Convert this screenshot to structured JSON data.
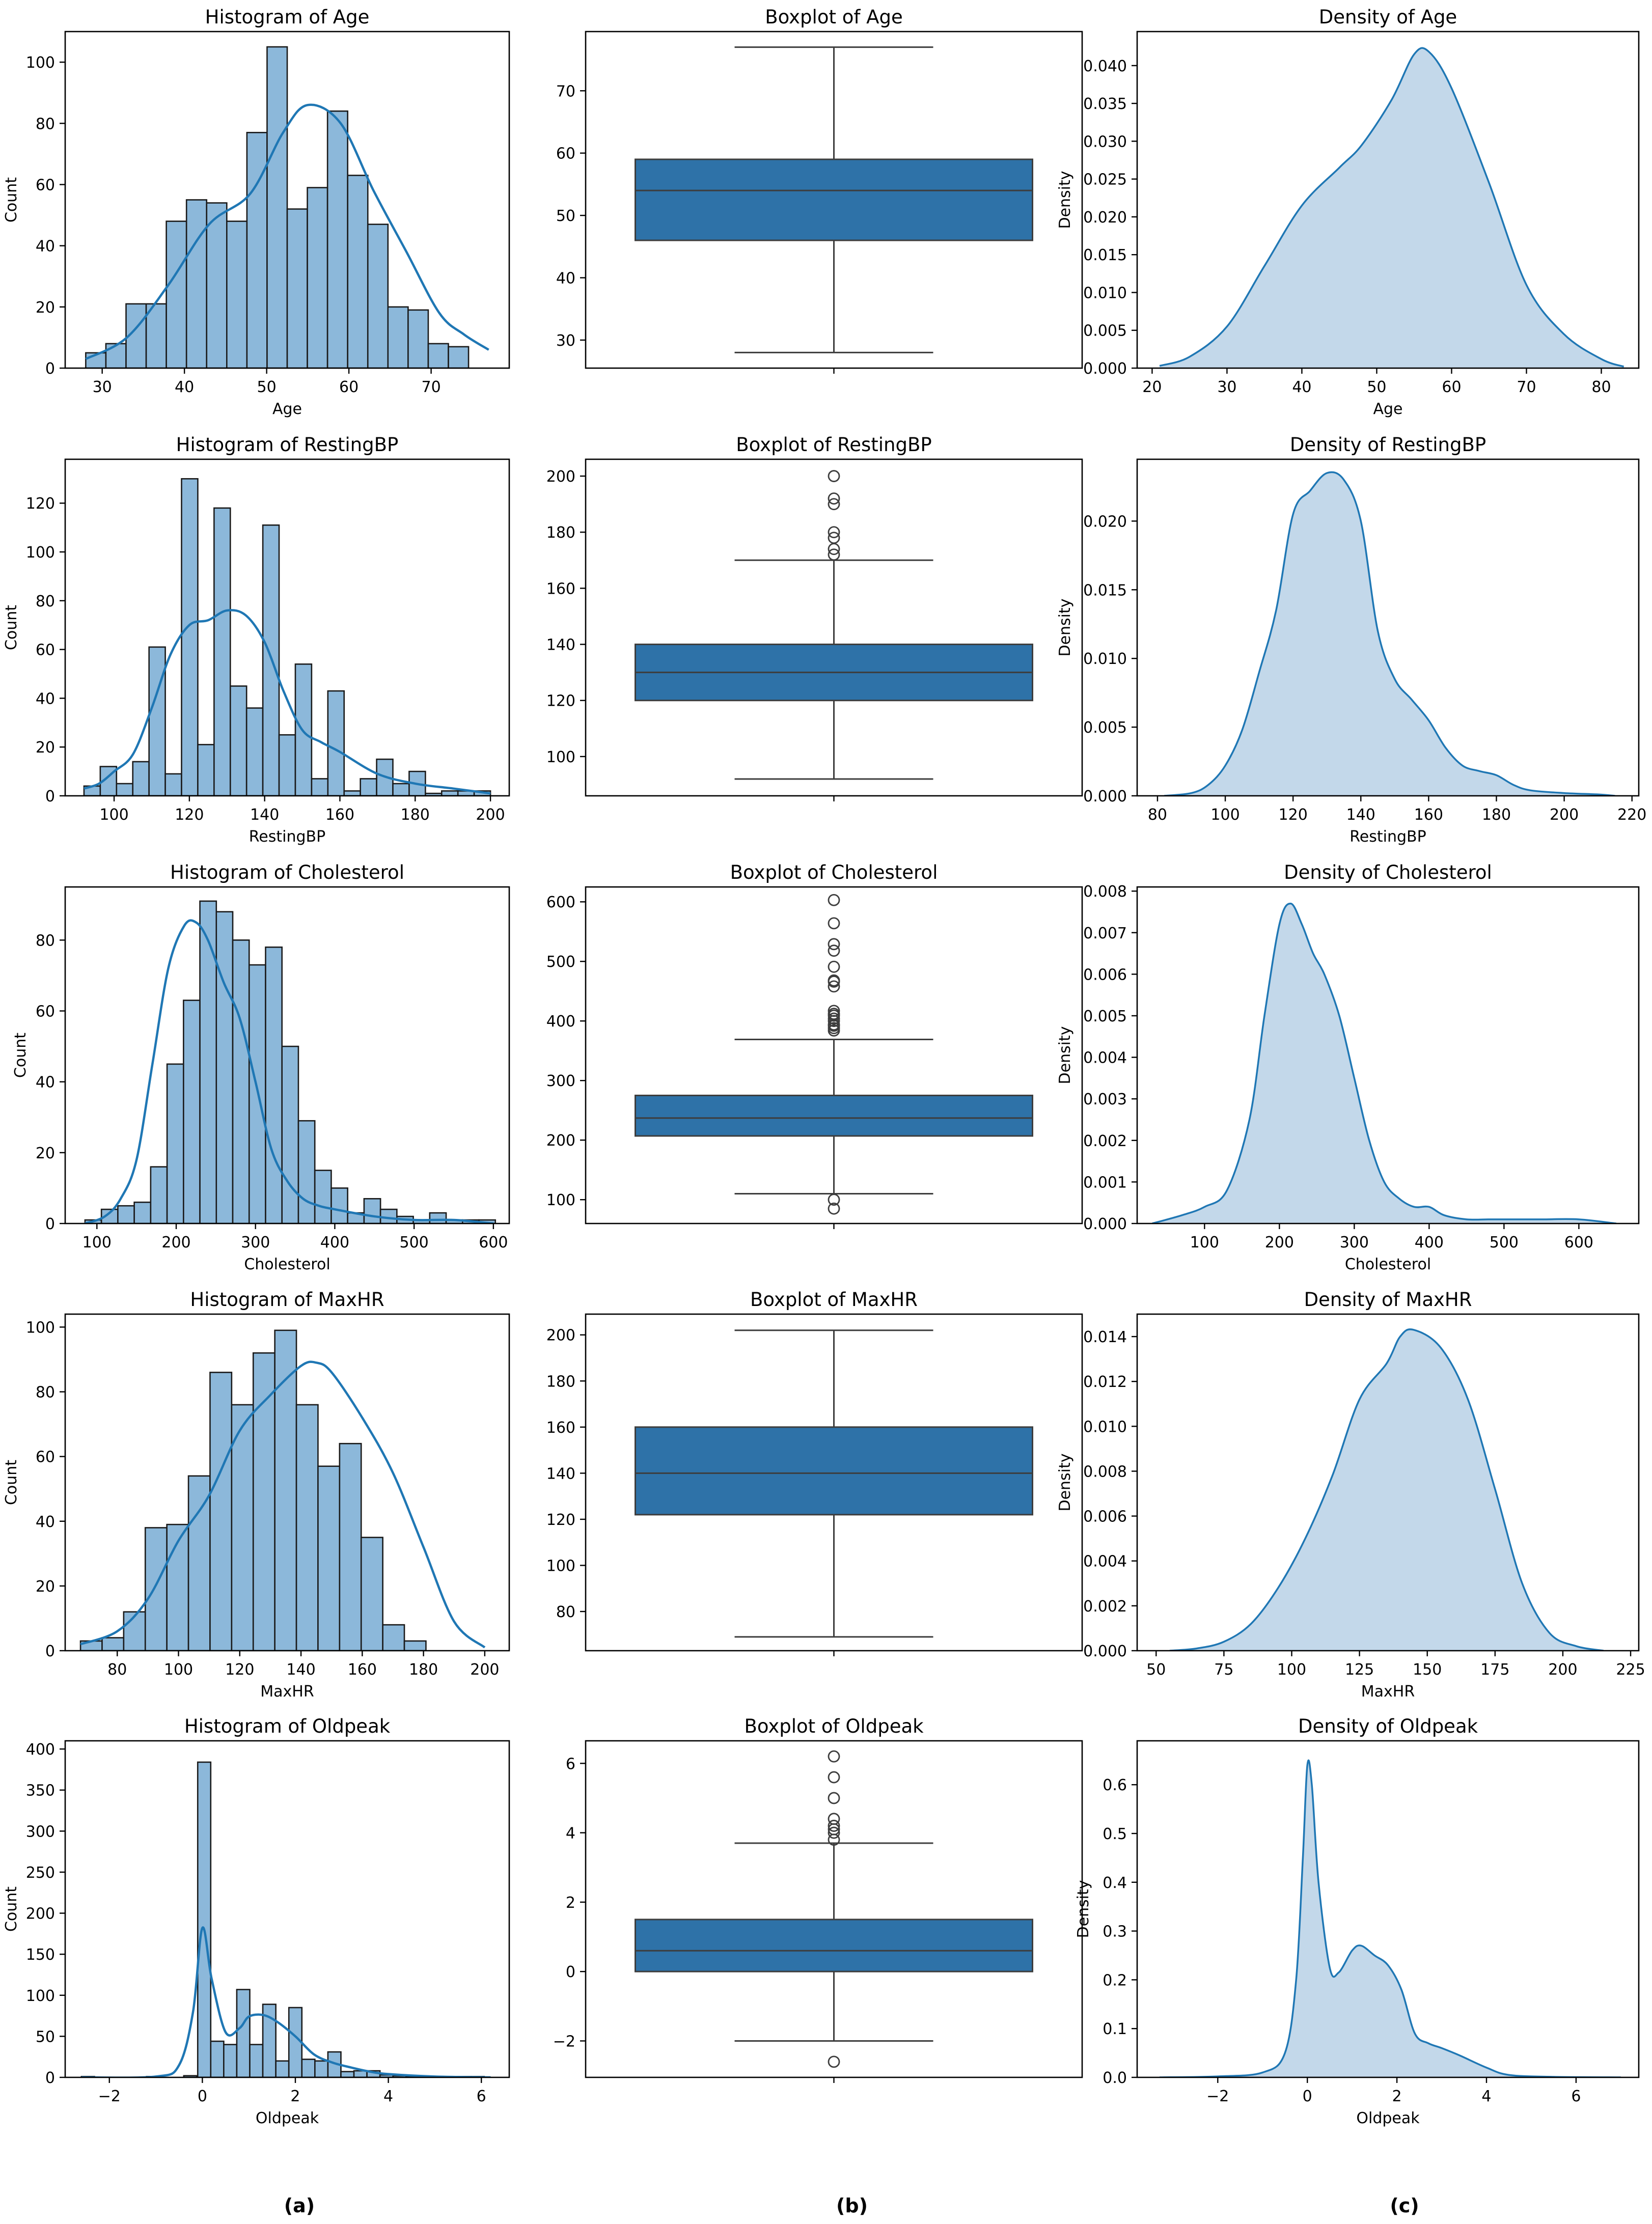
{
  "figure": {
    "panel_labels": [
      "(a)",
      "(b)",
      "(c)"
    ],
    "colors": {
      "main": "#1f77b4",
      "box": "#2e72a8",
      "hist_fill": "#8cb8da",
      "kde_fill": "#c3d8ea",
      "edge": "#1a1a1a"
    }
  },
  "chart_data": [
    {
      "type": "bar",
      "subtype": "histogram",
      "row": 0,
      "col": 0,
      "title": "Histogram of Age",
      "xlabel": "Age",
      "ylabel": "Count",
      "xlim": [
        25.5,
        79.5
      ],
      "ylim": [
        0,
        110
      ],
      "xticks": [
        30,
        40,
        50,
        60,
        70
      ],
      "yticks": [
        0,
        20,
        40,
        60,
        80,
        100
      ],
      "bin_start": 28,
      "bin_width": 2.45,
      "values": [
        5,
        8,
        21,
        21,
        48,
        55,
        54,
        48,
        77,
        105,
        52,
        59,
        84,
        63,
        47,
        20,
        19,
        8,
        7
      ],
      "kde": {
        "x": [
          28,
          33,
          38,
          43,
          48,
          52,
          55,
          59,
          63,
          67,
          71,
          74,
          77
        ],
        "y": [
          3,
          10,
          27,
          47,
          57,
          77,
          86,
          80,
          58,
          38,
          18,
          11,
          6
        ]
      }
    },
    {
      "type": "box",
      "row": 0,
      "col": 1,
      "title": "Boxplot of Age",
      "xlabel": "",
      "ylabel": "",
      "ylim": [
        25.5,
        79.5
      ],
      "yticks": [
        30,
        40,
        50,
        60,
        70
      ],
      "whisker_low": 28,
      "q1": 46,
      "median": 54,
      "q3": 59,
      "whisker_high": 77,
      "outliers": []
    },
    {
      "type": "area",
      "subtype": "density",
      "row": 0,
      "col": 2,
      "title": "Density of Age",
      "xlabel": "Age",
      "ylabel": "Density",
      "xlim": [
        18,
        85
      ],
      "ylim": [
        0,
        0.0445
      ],
      "xticks": [
        20,
        30,
        40,
        50,
        60,
        70,
        80
      ],
      "yticks": [
        0.0,
        0.005,
        0.01,
        0.015,
        0.02,
        0.025,
        0.03,
        0.035,
        0.04
      ],
      "ytick_labels": [
        "0.000",
        "0.005",
        "0.010",
        "0.015",
        "0.020",
        "0.025",
        "0.030",
        "0.035",
        "0.040"
      ],
      "x": [
        21,
        25,
        30,
        35,
        40,
        45,
        48,
        52,
        55,
        57,
        60,
        65,
        70,
        75,
        80,
        83
      ],
      "y": [
        0.0003,
        0.0015,
        0.0055,
        0.0135,
        0.0215,
        0.0265,
        0.0295,
        0.0355,
        0.0415,
        0.0418,
        0.037,
        0.0245,
        0.011,
        0.0045,
        0.0012,
        0.0002
      ]
    },
    {
      "type": "bar",
      "subtype": "histogram",
      "row": 1,
      "col": 0,
      "title": "Histogram of RestingBP",
      "xlabel": "RestingBP",
      "ylabel": "Count",
      "xlim": [
        87,
        205
      ],
      "ylim": [
        0,
        138
      ],
      "xticks": [
        100,
        120,
        140,
        160,
        180,
        200
      ],
      "yticks": [
        0,
        20,
        40,
        60,
        80,
        100,
        120
      ],
      "bin_start": 92,
      "bin_width": 4.32,
      "values": [
        4,
        12,
        5,
        14,
        61,
        9,
        130,
        21,
        118,
        45,
        36,
        111,
        25,
        54,
        7,
        43,
        2,
        7,
        15,
        5,
        10,
        1,
        2,
        2,
        2
      ],
      "kde": {
        "x": [
          92,
          96,
          100,
          105,
          110,
          115,
          120,
          125,
          130,
          135,
          140,
          145,
          150,
          155,
          160,
          170,
          180,
          190,
          200
        ],
        "y": [
          3,
          5,
          10,
          17,
          36,
          58,
          70,
          72,
          76,
          74,
          63,
          43,
          27,
          22,
          18,
          9,
          5,
          3,
          1
        ]
      }
    },
    {
      "type": "box",
      "row": 1,
      "col": 1,
      "title": "Boxplot of RestingBP",
      "xlabel": "",
      "ylabel": "",
      "ylim": [
        86,
        206
      ],
      "yticks": [
        100,
        120,
        140,
        160,
        180,
        200
      ],
      "whisker_low": 92,
      "q1": 120,
      "median": 130,
      "q3": 140,
      "whisker_high": 170,
      "outliers": [
        172,
        174,
        178,
        180,
        190,
        192,
        200
      ]
    },
    {
      "type": "area",
      "subtype": "density",
      "row": 1,
      "col": 2,
      "title": "Density of RestingBP",
      "xlabel": "RestingBP",
      "ylabel": "Density",
      "xlim": [
        74,
        222
      ],
      "ylim": [
        0,
        0.0245
      ],
      "xticks": [
        80,
        100,
        120,
        140,
        160,
        180,
        200,
        220
      ],
      "yticks": [
        0.0,
        0.005,
        0.01,
        0.015,
        0.02
      ],
      "ytick_labels": [
        "0.000",
        "0.005",
        "0.010",
        "0.015",
        "0.020"
      ],
      "x": [
        82,
        90,
        95,
        100,
        105,
        110,
        115,
        120,
        125,
        130,
        135,
        140,
        145,
        150,
        155,
        160,
        165,
        170,
        175,
        180,
        185,
        190,
        200,
        210,
        215
      ],
      "y": [
        0.0,
        0.0002,
        0.0008,
        0.0022,
        0.0048,
        0.009,
        0.0135,
        0.0205,
        0.0222,
        0.0235,
        0.023,
        0.02,
        0.012,
        0.0085,
        0.007,
        0.0055,
        0.0035,
        0.0022,
        0.0018,
        0.0015,
        0.0008,
        0.0004,
        0.0002,
        0.0001,
        0.0
      ]
    },
    {
      "type": "bar",
      "subtype": "histogram",
      "row": 2,
      "col": 0,
      "title": "Histogram of Cholesterol",
      "xlabel": "Cholesterol",
      "ylabel": "Count",
      "xlim": [
        60,
        620
      ],
      "ylim": [
        0,
        95
      ],
      "xticks": [
        100,
        200,
        300,
        400,
        500,
        600
      ],
      "yticks": [
        0,
        20,
        40,
        60,
        80
      ],
      "bin_start": 85,
      "bin_width": 20.7,
      "values": [
        1,
        4,
        5,
        6,
        16,
        45,
        63,
        91,
        88,
        80,
        73,
        78,
        50,
        29,
        15,
        10,
        3,
        7,
        4,
        2,
        1,
        3,
        1,
        1,
        1
      ],
      "kde": {
        "x": [
          85,
          110,
          130,
          150,
          170,
          190,
          210,
          225,
          240,
          260,
          280,
          300,
          320,
          340,
          360,
          380,
          400,
          450,
          500,
          550,
          600
        ],
        "y": [
          0,
          2,
          7,
          18,
          45,
          72,
          84,
          85,
          80,
          68,
          58,
          40,
          21,
          12,
          7,
          5,
          4,
          2,
          1,
          1,
          0
        ]
      }
    },
    {
      "type": "box",
      "row": 2,
      "col": 1,
      "title": "Boxplot of Cholesterol",
      "xlabel": "",
      "ylabel": "",
      "ylim": [
        60,
        625
      ],
      "yticks": [
        100,
        200,
        300,
        400,
        500,
        600
      ],
      "whisker_low": 110,
      "q1": 207,
      "median": 237,
      "q3": 275,
      "whisker_high": 369,
      "outliers": [
        85,
        100,
        384,
        388,
        392,
        394,
        400,
        404,
        409,
        412,
        417,
        458,
        466,
        468,
        491,
        518,
        529,
        564,
        603
      ]
    },
    {
      "type": "area",
      "subtype": "density",
      "row": 2,
      "col": 2,
      "title": "Density of Cholesterol",
      "xlabel": "Cholesterol",
      "ylabel": "Density",
      "xlim": [
        10,
        680
      ],
      "ylim": [
        0,
        0.0081
      ],
      "xticks": [
        100,
        200,
        300,
        400,
        500,
        600
      ],
      "yticks": [
        0.0,
        0.001,
        0.002,
        0.003,
        0.004,
        0.005,
        0.006,
        0.007,
        0.008
      ],
      "ytick_labels": [
        "0.000",
        "0.001",
        "0.002",
        "0.003",
        "0.004",
        "0.005",
        "0.006",
        "0.007",
        "0.008"
      ],
      "x": [
        30,
        70,
        100,
        130,
        160,
        180,
        200,
        215,
        230,
        245,
        260,
        280,
        300,
        320,
        340,
        360,
        380,
        400,
        420,
        450,
        480,
        500,
        550,
        600,
        650
      ],
      "y": [
        0.0,
        0.0002,
        0.0004,
        0.0008,
        0.0025,
        0.005,
        0.0072,
        0.0077,
        0.0072,
        0.0065,
        0.006,
        0.005,
        0.0035,
        0.002,
        0.001,
        0.0006,
        0.0004,
        0.0004,
        0.0002,
        0.0001,
        0.0001,
        0.0001,
        0.0001,
        0.0001,
        0.0
      ]
    },
    {
      "type": "bar",
      "subtype": "histogram",
      "row": 3,
      "col": 0,
      "title": "Histogram of MaxHR",
      "xlabel": "MaxHR",
      "ylabel": "Count",
      "xlim": [
        63,
        208
      ],
      "ylim": [
        0,
        104
      ],
      "xticks": [
        80,
        100,
        120,
        140,
        160,
        180,
        200
      ],
      "yticks": [
        0,
        20,
        40,
        60,
        80,
        100
      ],
      "bin_start": 68,
      "bin_width": 7.05,
      "values": [
        3,
        4,
        12,
        38,
        39,
        54,
        86,
        76,
        92,
        99,
        76,
        57,
        64,
        35,
        8,
        3
      ],
      "kde": {
        "x": [
          68,
          80,
          90,
          100,
          110,
          120,
          130,
          140,
          145,
          150,
          160,
          170,
          180,
          190,
          200
        ],
        "y": [
          2,
          6,
          16,
          34,
          48,
          68,
          79,
          88,
          89,
          86,
          72,
          55,
          32,
          9,
          1
        ]
      }
    },
    {
      "type": "box",
      "row": 3,
      "col": 1,
      "title": "Boxplot of MaxHR",
      "xlabel": "",
      "ylabel": "",
      "ylim": [
        63,
        209
      ],
      "yticks": [
        80,
        100,
        120,
        140,
        160,
        180,
        200
      ],
      "whisker_low": 69,
      "q1": 122,
      "median": 140,
      "q3": 160,
      "whisker_high": 202,
      "outliers": []
    },
    {
      "type": "area",
      "subtype": "density",
      "row": 3,
      "col": 2,
      "title": "Density of MaxHR",
      "xlabel": "MaxHR",
      "ylabel": "Density",
      "xlim": [
        43,
        228
      ],
      "ylim": [
        0,
        0.015
      ],
      "xticks": [
        50,
        75,
        100,
        125,
        150,
        175,
        200,
        225
      ],
      "yticks": [
        0.0,
        0.002,
        0.004,
        0.006,
        0.008,
        0.01,
        0.012,
        0.014
      ],
      "ytick_labels": [
        "0.000",
        "0.002",
        "0.004",
        "0.006",
        "0.008",
        "0.010",
        "0.012",
        "0.014"
      ],
      "x": [
        55,
        65,
        75,
        85,
        95,
        105,
        115,
        125,
        135,
        140,
        145,
        155,
        165,
        175,
        185,
        195,
        205,
        215
      ],
      "y": [
        0.0,
        0.0001,
        0.0004,
        0.0012,
        0.0028,
        0.005,
        0.0078,
        0.0112,
        0.0128,
        0.014,
        0.0143,
        0.0135,
        0.0112,
        0.0072,
        0.003,
        0.0008,
        0.0002,
        0.0
      ]
    },
    {
      "type": "bar",
      "subtype": "histogram",
      "row": 4,
      "col": 0,
      "title": "Histogram of Oldpeak",
      "xlabel": "Oldpeak",
      "ylabel": "Count",
      "xlim": [
        -2.95,
        6.6
      ],
      "ylim": [
        0,
        410
      ],
      "xticks": [
        -2,
        0,
        2,
        4,
        6
      ],
      "yticks": [
        0,
        50,
        100,
        150,
        200,
        250,
        300,
        350,
        400
      ],
      "bin_start": -0.1,
      "bin_width": 0.28,
      "values": [
        384,
        44,
        40,
        107,
        40,
        89,
        20,
        85,
        22,
        20,
        31,
        7,
        8,
        8,
        3,
        2,
        1,
        1,
        1,
        1,
        1,
        1
      ],
      "extra_bars": [
        {
          "x0": -2.6,
          "x1": -2.32,
          "value": 1
        },
        {
          "x0": -1.2,
          "x1": -0.92,
          "value": 1
        },
        {
          "x0": -0.4,
          "x1": -0.12,
          "value": 2
        }
      ],
      "kde": {
        "x": [
          -2.6,
          -1,
          -0.5,
          -0.2,
          0,
          0.2,
          0.5,
          0.8,
          1,
          1.3,
          1.6,
          2,
          2.4,
          2.8,
          3.2,
          3.6,
          4,
          5,
          6.2
        ],
        "y": [
          0,
          1,
          15,
          80,
          182,
          120,
          55,
          60,
          74,
          76,
          68,
          50,
          28,
          18,
          12,
          7,
          4,
          1,
          0
        ]
      }
    },
    {
      "type": "box",
      "row": 4,
      "col": 1,
      "title": "Boxplot of Oldpeak",
      "xlabel": "",
      "ylabel": "",
      "ylim": [
        -3.05,
        6.65
      ],
      "yticks": [
        -2,
        0,
        2,
        4,
        6
      ],
      "whisker_low": -2.0,
      "q1": 0.0,
      "median": 0.6,
      "q3": 1.5,
      "whisker_high": 3.7,
      "outliers": [
        -2.6,
        3.8,
        4.0,
        4.1,
        4.2,
        4.4,
        5.0,
        5.6,
        6.2
      ]
    },
    {
      "type": "area",
      "subtype": "density",
      "row": 4,
      "col": 2,
      "title": "Density of Oldpeak",
      "xlabel": "Oldpeak",
      "ylabel": "Density",
      "xlim": [
        -3.8,
        7.4
      ],
      "ylim": [
        0,
        0.69
      ],
      "xticks": [
        -2,
        0,
        2,
        4,
        6
      ],
      "yticks": [
        0.0,
        0.1,
        0.2,
        0.3,
        0.4,
        0.5,
        0.6
      ],
      "ytick_labels": [
        "0.0",
        "0.1",
        "0.2",
        "0.3",
        "0.4",
        "0.5",
        "0.6"
      ],
      "x": [
        -3.3,
        -2,
        -1,
        -0.5,
        -0.25,
        -0.1,
        0,
        0.1,
        0.25,
        0.5,
        0.7,
        1,
        1.2,
        1.5,
        1.8,
        2.1,
        2.4,
        2.7,
        3,
        3.4,
        4,
        4.5,
        5.5,
        7
      ],
      "y": [
        0.0,
        0.002,
        0.01,
        0.05,
        0.2,
        0.45,
        0.64,
        0.6,
        0.4,
        0.225,
        0.215,
        0.26,
        0.27,
        0.25,
        0.23,
        0.18,
        0.09,
        0.07,
        0.06,
        0.045,
        0.02,
        0.005,
        0.001,
        0.0
      ]
    }
  ]
}
